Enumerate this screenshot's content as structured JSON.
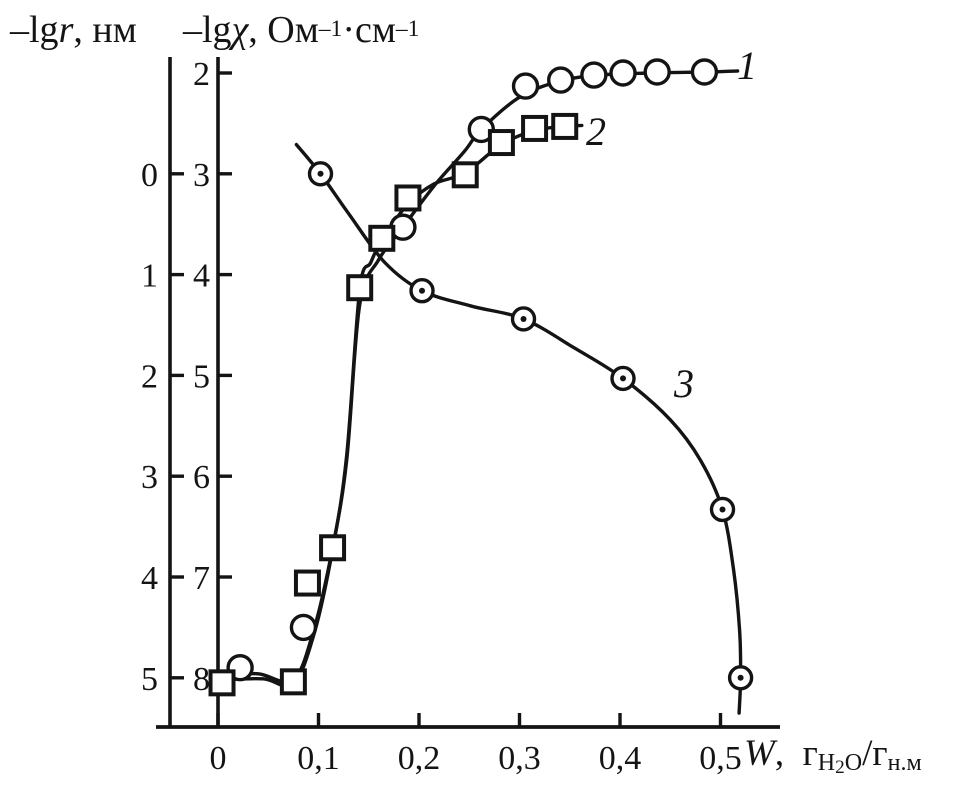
{
  "figure": {
    "title_left": {
      "prefix": "–lg",
      "variable": "r",
      "suffix": ", нм"
    },
    "title_right": {
      "prefix": "–lg",
      "variable": "χ",
      "comma": ", ",
      "unit1": "Ом",
      "sup1": "–1",
      "dot": "·",
      "unit2": "см",
      "sup2": "–1"
    },
    "x_title": {
      "variable": "W",
      "comma": ",",
      "g1": "г",
      "sub1_h": "H",
      "sub1_2": "2",
      "sub1_o": "O",
      "slash": "/",
      "g2": "г",
      "sub2": "н.м"
    }
  },
  "chart_data": {
    "type": "line",
    "title": "",
    "x_axis": {
      "label": "W, г(H2O)/г(н.м)",
      "tick_labels": [
        "0",
        "0,1",
        "0,2",
        "0,3",
        "0,4",
        "0,5"
      ],
      "tick_values": [
        0,
        0.1,
        0.2,
        0.3,
        0.4,
        0.5
      ],
      "range": [
        0,
        0.56
      ],
      "decimal_separator": ","
    },
    "y_axis_left": {
      "label": "–lg r, нм",
      "tick_labels": [
        "0",
        "1",
        "2",
        "3",
        "4",
        "5"
      ],
      "tick_values": [
        0,
        1,
        2,
        3,
        4,
        5
      ],
      "direction": "increasing-downward"
    },
    "y_axis_right": {
      "label": "–lg χ, Ом–1·см–1",
      "tick_labels": [
        "2",
        "3",
        "4",
        "5",
        "6",
        "7",
        "8"
      ],
      "tick_values": [
        2,
        3,
        4,
        5,
        6,
        7,
        8
      ],
      "direction": "increasing-downward"
    },
    "axes_alignment": "lgr = lgχ − 3 (both vertical scales share the same pixel grid)",
    "grid": false,
    "legend": "inline numeric labels next to curves",
    "series": [
      {
        "name": "1",
        "marker": "circle",
        "axis": "right",
        "points": [
          [
            0.022,
            7.9
          ],
          [
            0.085,
            7.5
          ],
          [
            0.184,
            3.53
          ],
          [
            0.262,
            2.56
          ],
          [
            0.306,
            2.13
          ],
          [
            0.341,
            2.07
          ],
          [
            0.374,
            2.02
          ],
          [
            0.403,
            2.0
          ],
          [
            0.437,
            1.99
          ],
          [
            0.484,
            1.99
          ]
        ],
        "line": [
          [
            0.001,
            7.97
          ],
          [
            0.04,
            7.96
          ],
          [
            0.075,
            8.02
          ],
          [
            0.096,
            7.5
          ],
          [
            0.114,
            6.71
          ],
          [
            0.128,
            5.85
          ],
          [
            0.141,
            4.3
          ],
          [
            0.16,
            3.85
          ],
          [
            0.184,
            3.53
          ],
          [
            0.215,
            3.12
          ],
          [
            0.245,
            2.78
          ],
          [
            0.262,
            2.56
          ],
          [
            0.3,
            2.24
          ],
          [
            0.34,
            2.08
          ],
          [
            0.38,
            2.02
          ],
          [
            0.43,
            2.0
          ],
          [
            0.484,
            1.99
          ],
          [
            0.517,
            1.98
          ]
        ]
      },
      {
        "name": "2",
        "marker": "square",
        "axis": "right",
        "points": [
          [
            0.004,
            8.05
          ],
          [
            0.075,
            8.04
          ],
          [
            0.089,
            7.06
          ],
          [
            0.114,
            6.71
          ],
          [
            0.141,
            4.13
          ],
          [
            0.163,
            3.64
          ],
          [
            0.189,
            3.24
          ],
          [
            0.246,
            3.01
          ],
          [
            0.282,
            2.69
          ],
          [
            0.315,
            2.55
          ],
          [
            0.345,
            2.53
          ]
        ],
        "line": [
          [
            0.001,
            8.02
          ],
          [
            0.045,
            8.01
          ],
          [
            0.075,
            8.06
          ],
          [
            0.096,
            7.55
          ],
          [
            0.114,
            6.73
          ],
          [
            0.128,
            5.8
          ],
          [
            0.141,
            4.15
          ],
          [
            0.152,
            3.88
          ],
          [
            0.163,
            3.66
          ],
          [
            0.189,
            3.3
          ],
          [
            0.215,
            3.1
          ],
          [
            0.246,
            2.99
          ],
          [
            0.282,
            2.71
          ],
          [
            0.315,
            2.57
          ],
          [
            0.345,
            2.53
          ],
          [
            0.362,
            2.52
          ]
        ]
      },
      {
        "name": "3",
        "marker": "dot-circle",
        "axis": "left",
        "points": [
          [
            0.102,
            0.0
          ],
          [
            0.203,
            1.16
          ],
          [
            0.304,
            1.44
          ],
          [
            0.403,
            2.03
          ],
          [
            0.502,
            3.33
          ],
          [
            0.52,
            5.0
          ]
        ],
        "line": [
          [
            0.078,
            -0.29
          ],
          [
            0.102,
            0.0
          ],
          [
            0.131,
            0.41
          ],
          [
            0.166,
            0.88
          ],
          [
            0.203,
            1.16
          ],
          [
            0.251,
            1.31
          ],
          [
            0.304,
            1.44
          ],
          [
            0.355,
            1.73
          ],
          [
            0.403,
            2.03
          ],
          [
            0.45,
            2.44
          ],
          [
            0.48,
            2.84
          ],
          [
            0.502,
            3.33
          ],
          [
            0.513,
            3.93
          ],
          [
            0.519,
            4.53
          ],
          [
            0.52,
            5.0
          ],
          [
            0.5185,
            5.35
          ]
        ]
      }
    ]
  }
}
